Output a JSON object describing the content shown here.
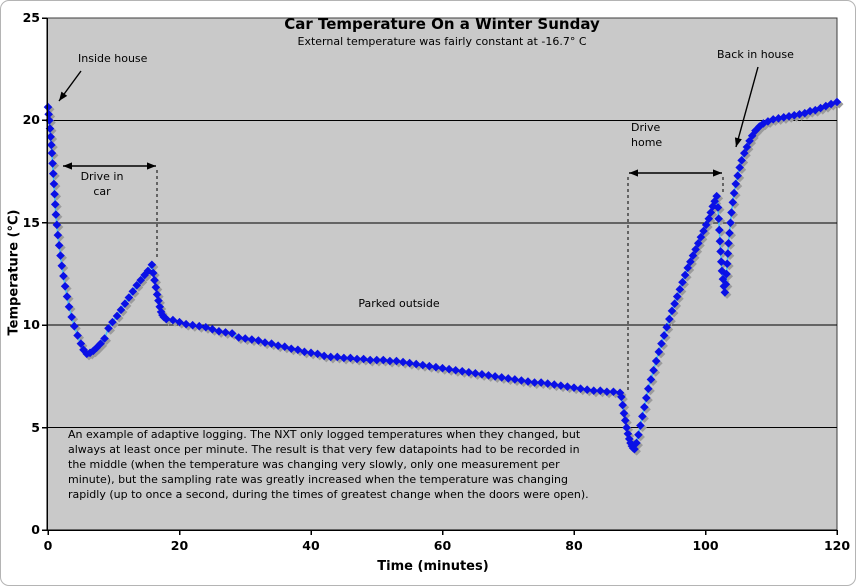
{
  "chart_data": {
    "type": "scatter",
    "title": "Car Temperature On a Winter Sunday",
    "subtitle": "External temperature was fairly constant at -16.7° C",
    "xlabel": "Time (minutes)",
    "ylabel": "Temperature (°C)",
    "xlim": [
      0,
      120
    ],
    "ylim": [
      0,
      25
    ],
    "x_ticks": [
      0,
      20,
      40,
      60,
      80,
      100,
      120
    ],
    "y_ticks": [
      0,
      5,
      10,
      15,
      20,
      25
    ],
    "grid": "horizontal",
    "legend": "none",
    "colors": {
      "marker": "#0a10e6",
      "line": "#4ac3ef",
      "shadow": "#9b9b9b",
      "plot_bg": "#c9c9c9",
      "axis": "#000000"
    },
    "annotations": {
      "inside_house": "Inside house",
      "drive_in_car": "Drive in\ncar",
      "parked_outside": "Parked outside",
      "drive_home": "Drive\nhome",
      "back_in_house": "Back in house"
    },
    "series": [
      {
        "marker": "diamond",
        "points": [
          [
            0,
            20.65
          ],
          [
            0.1,
            20.3
          ],
          [
            0.2,
            20.0
          ],
          [
            0.3,
            19.6
          ],
          [
            0.4,
            19.2
          ],
          [
            0.5,
            18.8
          ],
          [
            0.6,
            18.4
          ],
          [
            0.7,
            17.9
          ],
          [
            0.8,
            17.4
          ],
          [
            0.9,
            16.9
          ],
          [
            1.0,
            16.4
          ],
          [
            1.1,
            15.9
          ],
          [
            1.2,
            15.4
          ],
          [
            1.35,
            14.9
          ],
          [
            1.5,
            14.4
          ],
          [
            1.7,
            13.9
          ],
          [
            1.9,
            13.4
          ],
          [
            2.1,
            12.9
          ],
          [
            2.35,
            12.4
          ],
          [
            2.6,
            11.9
          ],
          [
            2.9,
            11.4
          ],
          [
            3.2,
            10.9
          ],
          [
            3.6,
            10.4
          ],
          [
            4.0,
            9.95
          ],
          [
            4.5,
            9.5
          ],
          [
            5.0,
            9.1
          ],
          [
            5.4,
            8.8
          ],
          [
            5.9,
            8.6
          ],
          [
            6.4,
            8.65
          ],
          [
            6.9,
            8.75
          ],
          [
            7.4,
            8.9
          ],
          [
            8.0,
            9.1
          ],
          [
            8.6,
            9.35
          ],
          [
            9.2,
            9.85
          ],
          [
            9.8,
            10.15
          ],
          [
            10.5,
            10.45
          ],
          [
            11.1,
            10.75
          ],
          [
            11.7,
            11.05
          ],
          [
            12.3,
            11.35
          ],
          [
            12.9,
            11.65
          ],
          [
            13.5,
            11.95
          ],
          [
            14.1,
            12.2
          ],
          [
            14.7,
            12.45
          ],
          [
            15.2,
            12.65
          ],
          [
            15.8,
            12.95
          ],
          [
            16.0,
            12.55
          ],
          [
            16.2,
            12.2
          ],
          [
            16.4,
            11.85
          ],
          [
            16.6,
            11.5
          ],
          [
            16.8,
            11.2
          ],
          [
            17.0,
            10.9
          ],
          [
            17.2,
            10.65
          ],
          [
            17.4,
            10.5
          ],
          [
            17.6,
            10.4
          ],
          [
            18,
            10.3
          ],
          [
            19,
            10.25
          ],
          [
            20,
            10.15
          ],
          [
            21,
            10.05
          ],
          [
            22,
            10.0
          ],
          [
            23,
            9.95
          ],
          [
            24,
            9.9
          ],
          [
            25,
            9.8
          ],
          [
            26,
            9.7
          ],
          [
            27,
            9.65
          ],
          [
            28,
            9.6
          ],
          [
            29,
            9.4
          ],
          [
            30,
            9.35
          ],
          [
            31,
            9.3
          ],
          [
            32,
            9.25
          ],
          [
            33,
            9.15
          ],
          [
            34,
            9.1
          ],
          [
            35,
            9.0
          ],
          [
            36,
            8.95
          ],
          [
            37,
            8.85
          ],
          [
            38,
            8.8
          ],
          [
            39,
            8.7
          ],
          [
            40,
            8.65
          ],
          [
            41,
            8.6
          ],
          [
            42,
            8.5
          ],
          [
            43,
            8.45
          ],
          [
            44,
            8.45
          ],
          [
            45,
            8.4
          ],
          [
            46,
            8.4
          ],
          [
            47,
            8.35
          ],
          [
            48,
            8.35
          ],
          [
            49,
            8.3
          ],
          [
            50,
            8.3
          ],
          [
            51,
            8.3
          ],
          [
            52,
            8.25
          ],
          [
            53,
            8.25
          ],
          [
            54,
            8.2
          ],
          [
            55,
            8.15
          ],
          [
            56,
            8.1
          ],
          [
            57,
            8.05
          ],
          [
            58,
            8.0
          ],
          [
            59,
            7.95
          ],
          [
            60,
            7.9
          ],
          [
            61,
            7.85
          ],
          [
            62,
            7.8
          ],
          [
            63,
            7.75
          ],
          [
            64,
            7.7
          ],
          [
            65,
            7.65
          ],
          [
            66,
            7.6
          ],
          [
            67,
            7.55
          ],
          [
            68,
            7.5
          ],
          [
            69,
            7.45
          ],
          [
            70,
            7.4
          ],
          [
            71,
            7.35
          ],
          [
            72,
            7.3
          ],
          [
            73,
            7.25
          ],
          [
            74,
            7.2
          ],
          [
            75,
            7.2
          ],
          [
            76,
            7.15
          ],
          [
            77,
            7.1
          ],
          [
            78,
            7.05
          ],
          [
            79,
            7.0
          ],
          [
            80,
            6.95
          ],
          [
            81,
            6.9
          ],
          [
            82,
            6.85
          ],
          [
            83,
            6.8
          ],
          [
            84,
            6.8
          ],
          [
            85,
            6.75
          ],
          [
            86,
            6.75
          ],
          [
            87,
            6.7
          ],
          [
            87.2,
            6.5
          ],
          [
            87.4,
            6.1
          ],
          [
            87.6,
            5.7
          ],
          [
            87.8,
            5.35
          ],
          [
            88.0,
            5.0
          ],
          [
            88.2,
            4.7
          ],
          [
            88.4,
            4.45
          ],
          [
            88.6,
            4.25
          ],
          [
            88.8,
            4.1
          ],
          [
            89.0,
            4.0
          ],
          [
            89.2,
            3.95
          ],
          [
            89.5,
            4.25
          ],
          [
            89.8,
            4.65
          ],
          [
            90.1,
            5.1
          ],
          [
            90.4,
            5.55
          ],
          [
            90.7,
            6.0
          ],
          [
            91.0,
            6.45
          ],
          [
            91.3,
            6.9
          ],
          [
            91.7,
            7.35
          ],
          [
            92.1,
            7.8
          ],
          [
            92.5,
            8.25
          ],
          [
            92.9,
            8.7
          ],
          [
            93.3,
            9.1
          ],
          [
            93.7,
            9.5
          ],
          [
            94.1,
            9.9
          ],
          [
            94.5,
            10.3
          ],
          [
            94.9,
            10.7
          ],
          [
            95.3,
            11.05
          ],
          [
            95.7,
            11.4
          ],
          [
            96.1,
            11.75
          ],
          [
            96.5,
            12.1
          ],
          [
            96.9,
            12.45
          ],
          [
            97.3,
            12.8
          ],
          [
            97.7,
            13.1
          ],
          [
            98.1,
            13.4
          ],
          [
            98.5,
            13.7
          ],
          [
            98.9,
            14.0
          ],
          [
            99.3,
            14.3
          ],
          [
            99.7,
            14.6
          ],
          [
            100.1,
            14.9
          ],
          [
            100.5,
            15.2
          ],
          [
            100.8,
            15.5
          ],
          [
            101.1,
            15.8
          ],
          [
            101.4,
            16.05
          ],
          [
            101.7,
            16.3
          ],
          [
            101.9,
            15.75
          ],
          [
            102.0,
            15.2
          ],
          [
            102.1,
            14.65
          ],
          [
            102.2,
            14.1
          ],
          [
            102.3,
            13.6
          ],
          [
            102.4,
            13.1
          ],
          [
            102.5,
            12.65
          ],
          [
            102.65,
            12.25
          ],
          [
            102.8,
            11.9
          ],
          [
            102.95,
            11.6
          ],
          [
            103.1,
            12.0
          ],
          [
            103.2,
            12.5
          ],
          [
            103.3,
            13.0
          ],
          [
            103.4,
            13.5
          ],
          [
            103.5,
            14.0
          ],
          [
            103.65,
            14.5
          ],
          [
            103.8,
            15.0
          ],
          [
            103.95,
            15.5
          ],
          [
            104.15,
            16.0
          ],
          [
            104.35,
            16.45
          ],
          [
            104.6,
            16.9
          ],
          [
            104.9,
            17.3
          ],
          [
            105.2,
            17.7
          ],
          [
            105.5,
            18.05
          ],
          [
            105.9,
            18.4
          ],
          [
            106.3,
            18.7
          ],
          [
            106.7,
            19.0
          ],
          [
            107.1,
            19.25
          ],
          [
            107.6,
            19.5
          ],
          [
            108.2,
            19.7
          ],
          [
            108.8,
            19.85
          ],
          [
            109.5,
            19.95
          ],
          [
            110.3,
            20.05
          ],
          [
            111.1,
            20.1
          ],
          [
            111.9,
            20.15
          ],
          [
            112.7,
            20.2
          ],
          [
            113.5,
            20.25
          ],
          [
            114.3,
            20.3
          ],
          [
            115.1,
            20.35
          ],
          [
            115.9,
            20.45
          ],
          [
            116.7,
            20.5
          ],
          [
            117.5,
            20.6
          ],
          [
            118.3,
            20.7
          ],
          [
            119.1,
            20.8
          ],
          [
            120,
            20.9
          ]
        ]
      }
    ]
  },
  "caption": {
    "text": "An example of adaptive logging. The NXT only logged temperatures when they changed, but\nalways at least once per minute. The result is that very few datapoints had to be recorded in\nthe middle (when the temperature was changing very slowly, only one measurement per\nminute), but the sampling rate was greatly increased when the temperature was changing\nrapidly (up to once a second, during the times of greatest change when the doors were open)."
  }
}
